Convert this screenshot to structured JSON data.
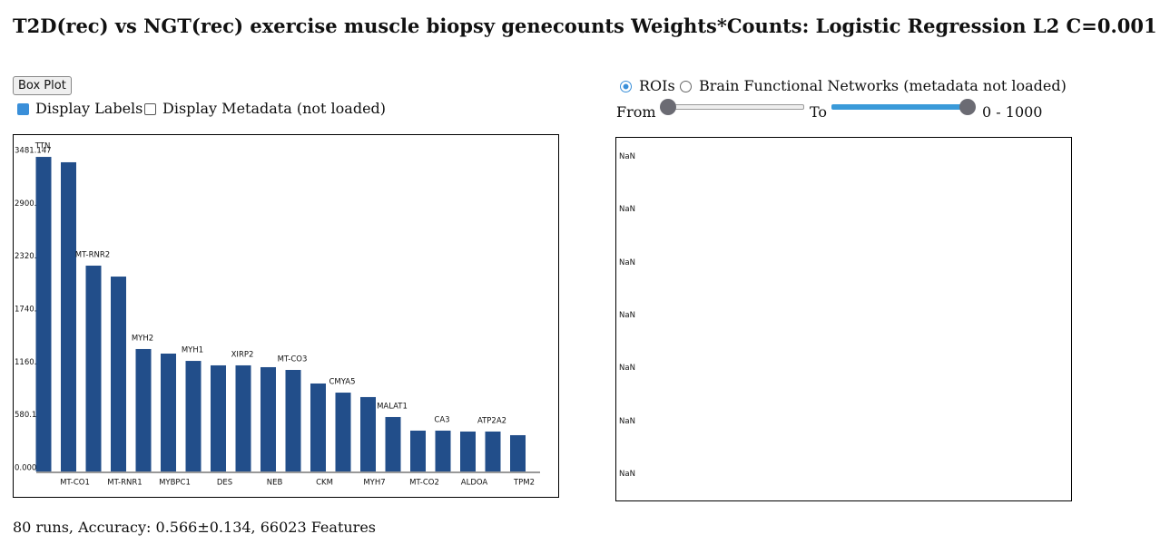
{
  "header": {
    "title": "T2D(rec) vs NGT(rec) exercise muscle biopsy genecounts Weights*Counts: Logistic Regression L2 C=0.001"
  },
  "controls": {
    "button": "Box Plot",
    "display_labels": "Display Labels",
    "display_metadata": "Display Metadata (not loaded)",
    "radio_rois": "ROIs",
    "radio_networks": "Brain Functional Networks (metadata not loaded)",
    "from": "From",
    "to": "To",
    "range": "0 - 1000"
  },
  "chart_data": {
    "type": "bar",
    "categories": [
      "TTN",
      "MT-CO1",
      "MT-RNR2",
      "MT-RNR1",
      "MYH2",
      "MYBPC1",
      "MYH1",
      "DES",
      "XIRP2",
      "NEB",
      "MT-CO3",
      "CKM",
      "CMYA5",
      "MYH7",
      "MALAT1",
      "MT-CO2",
      "CA3",
      "ALDOA",
      "ATP2A2",
      "TPM2"
    ],
    "values": [
      3451,
      3392,
      2258,
      2138,
      1343,
      1293,
      1213,
      1164,
      1164,
      1144,
      1114,
      965,
      865,
      816,
      597,
      448,
      448,
      438,
      438,
      398
    ],
    "color": "#224e8a",
    "ylim": [
      0,
      3700
    ],
    "yticks": [
      {
        "value": 0,
        "label": "0.000"
      },
      {
        "value": 580.191,
        "label": "580.191"
      },
      {
        "value": 1160.382,
        "label": "1160.382"
      },
      {
        "value": 1740.573,
        "label": "1740.573"
      },
      {
        "value": 2320.764,
        "label": "2320.764"
      },
      {
        "value": 2900.956,
        "label": "2900.956"
      },
      {
        "value": 3481.147,
        "label": "3481.147"
      }
    ]
  },
  "right_panel": {
    "labels": [
      "NaN",
      "NaN",
      "NaN",
      "NaN",
      "NaN",
      "NaN",
      "NaN"
    ]
  },
  "footer": {
    "summary": "80 runs, Accuracy: 0.566±0.134, 66023 Features"
  }
}
